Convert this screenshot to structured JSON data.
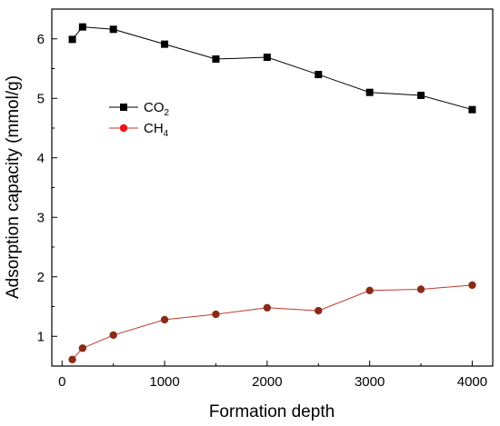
{
  "chart_data": {
    "type": "line",
    "title": "",
    "xlabel": "Formation depth",
    "ylabel": "Adsorption  capacity (mmol/g)",
    "xlim": [
      -100,
      4200
    ],
    "ylim": [
      0.5,
      6.5
    ],
    "x_ticks": [
      0,
      1000,
      2000,
      3000,
      4000
    ],
    "y_ticks": [
      1,
      2,
      3,
      4,
      5,
      6
    ],
    "grid": false,
    "legend_position": "upper-left",
    "series": [
      {
        "name": "CO2",
        "label_main": "CO",
        "label_sub": "2",
        "color": "#000000",
        "line_color": "#000000",
        "marker": "square",
        "x": [
          100,
          200,
          500,
          1000,
          1500,
          2000,
          2500,
          3000,
          3500,
          4000
        ],
        "y": [
          5.99,
          6.2,
          6.16,
          5.91,
          5.66,
          5.69,
          5.4,
          5.1,
          5.05,
          4.81
        ]
      },
      {
        "name": "CH4",
        "label_main": "CH",
        "label_sub": "4",
        "color": "#8b2a1a",
        "line_color": "#c0392b",
        "legend_marker_color": "#e8141c",
        "marker": "circle",
        "x": [
          100,
          200,
          500,
          1000,
          1500,
          2000,
          2500,
          3000,
          3500,
          4000
        ],
        "y": [
          0.61,
          0.8,
          1.02,
          1.28,
          1.37,
          1.48,
          1.43,
          1.77,
          1.79,
          1.86
        ]
      }
    ]
  }
}
